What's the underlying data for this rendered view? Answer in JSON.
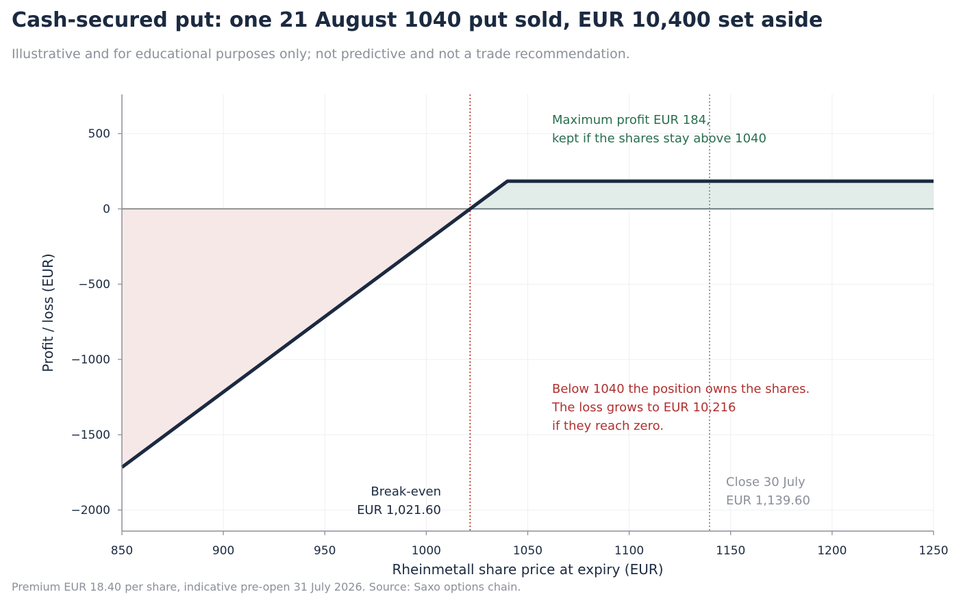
{
  "title": "Cash-secured put: one 21 August 1040 put sold, EUR 10,400 set aside",
  "subtitle": "Illustrative and for educational purposes only; not predictive and not a trade recommendation.",
  "footnote": "Premium EUR 18.40 per share, indicative pre-open 31 July 2026. Source: Saxo options chain.",
  "colors": {
    "payoff_line": "#1b2a40",
    "profit_fill": "#e2ece9",
    "loss_fill": "#f7e8e8",
    "profit_text": "#2a6e4f",
    "loss_text": "#b03030",
    "breakeven_line": "#c0392b",
    "close_line": "#8b8f99",
    "muted_text": "#8b8f99",
    "grid": "#eeeff2",
    "axis": "#8b8f99"
  },
  "chart_data": {
    "type": "line",
    "xlabel": "Rheinmetall share price at expiry (EUR)",
    "ylabel": "Profit / loss (EUR)",
    "xlim": [
      850,
      1250
    ],
    "ylim": [
      -2140,
      760
    ],
    "xticks": [
      850,
      900,
      950,
      1000,
      1050,
      1100,
      1150,
      1200,
      1250
    ],
    "yticks": [
      500,
      0,
      -500,
      -1000,
      -1500,
      -2000
    ],
    "ytick_labels": [
      "500",
      "0",
      "−500",
      "−1000",
      "−1500",
      "−2000"
    ],
    "grid": true,
    "series": [
      {
        "x": [
          850,
          1040,
          1250
        ],
        "y": [
          -1716,
          184,
          184
        ]
      }
    ],
    "reference_lines": [
      {
        "x": 1021.6,
        "style": "dotted",
        "role": "breakeven"
      },
      {
        "x": 1139.6,
        "style": "dotted",
        "role": "close"
      }
    ],
    "annotations": {
      "max_profit": [
        "Maximum profit EUR 184,",
        "kept if the shares stay above 1040"
      ],
      "loss": [
        "Below 1040 the position owns the shares.",
        "The loss grows to EUR 10,216",
        "if they reach zero."
      ],
      "breakeven": [
        "Break-even",
        "EUR 1,021.60"
      ],
      "close": [
        "Close 30 July",
        "EUR 1,139.60"
      ]
    }
  }
}
